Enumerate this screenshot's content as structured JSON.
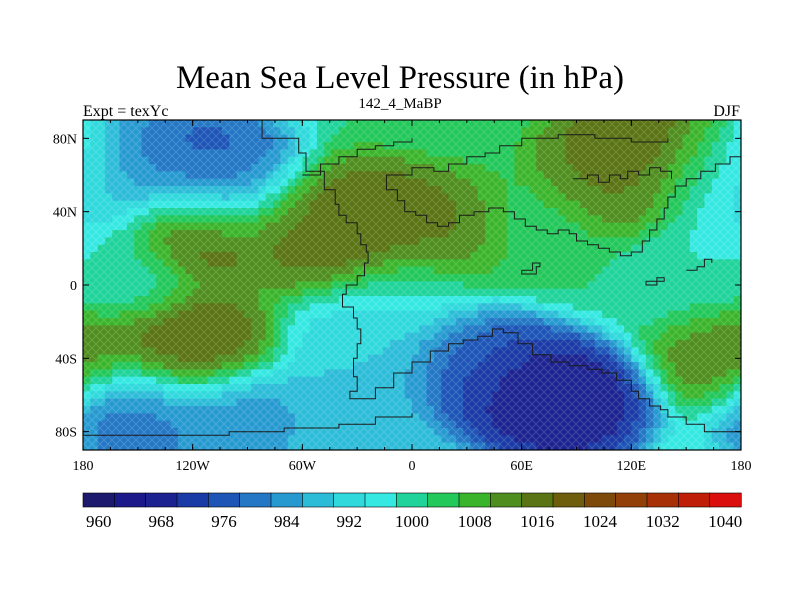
{
  "header": {
    "title": "Mean Sea Level Pressure (in hPa)",
    "subtitle": "142_4_MaBP",
    "left_label": "Expt = texYc",
    "right_label": "DJF"
  },
  "map": {
    "projection": "cylindrical-equidistant",
    "lon_range": [
      -180,
      180
    ],
    "lat_range": [
      -90,
      90
    ],
    "x_ticks": [
      {
        "lon": -180,
        "label": "180"
      },
      {
        "lon": -120,
        "label": "120W"
      },
      {
        "lon": -60,
        "label": "60W"
      },
      {
        "lon": 0,
        "label": "0"
      },
      {
        "lon": 60,
        "label": "60E"
      },
      {
        "lon": 120,
        "label": "120E"
      },
      {
        "lon": 180,
        "label": "180"
      }
    ],
    "y_ticks": [
      {
        "lat": 80,
        "label": "80N"
      },
      {
        "lat": 40,
        "label": "40N"
      },
      {
        "lat": 0,
        "label": "0"
      },
      {
        "lat": -40,
        "label": "40S"
      },
      {
        "lat": -80,
        "label": "80S"
      }
    ],
    "field_centers": [
      {
        "lon": -120,
        "lat": 65,
        "value": 975
      },
      {
        "lon": -100,
        "lat": 58,
        "value": 980
      },
      {
        "lon": -120,
        "lat": 33,
        "value": 1022
      },
      {
        "lon": -60,
        "lat": 35,
        "value": 1018
      },
      {
        "lon": -25,
        "lat": 30,
        "value": 1022
      },
      {
        "lon": 15,
        "lat": 25,
        "value": 1018
      },
      {
        "lon": 125,
        "lat": 72,
        "value": 1022
      },
      {
        "lon": 110,
        "lat": 55,
        "value": 1016
      },
      {
        "lon": 160,
        "lat": 60,
        "value": 1008
      },
      {
        "lon": 175,
        "lat": 52,
        "value": 990
      },
      {
        "lon": -150,
        "lat": 62,
        "value": 985
      },
      {
        "lon": -125,
        "lat": -35,
        "value": 1022
      },
      {
        "lon": -20,
        "lat": -35,
        "value": 992
      },
      {
        "lon": 55,
        "lat": -55,
        "value": 968
      },
      {
        "lon": 85,
        "lat": -65,
        "value": 966
      },
      {
        "lon": 30,
        "lat": -40,
        "value": 978
      },
      {
        "lon": -30,
        "lat": -75,
        "value": 988
      },
      {
        "lon": -150,
        "lat": -70,
        "value": 980
      },
      {
        "lon": -100,
        "lat": -75,
        "value": 984
      },
      {
        "lon": 175,
        "lat": -35,
        "value": 1016
      },
      {
        "lon": 70,
        "lat": 25,
        "value": 1005
      },
      {
        "lon": 0,
        "lat": -5,
        "value": 998
      },
      {
        "lon": 150,
        "lat": 5,
        "value": 1000
      },
      {
        "lon": -160,
        "lat": 5,
        "value": 1000
      }
    ],
    "base_value": 1004
  },
  "colorbar": {
    "levels": [
      960,
      964,
      968,
      972,
      976,
      980,
      984,
      988,
      992,
      996,
      1000,
      1004,
      1008,
      1012,
      1016,
      1020,
      1024,
      1028,
      1032,
      1036,
      1040
    ],
    "colors": [
      "#1d1a6e",
      "#1c1a8a",
      "#1c2390",
      "#1a3aa6",
      "#1d55b7",
      "#2377c5",
      "#269ad0",
      "#2cbcd8",
      "#2fd9dc",
      "#35e8e2",
      "#1fd39a",
      "#22c85a",
      "#3ab52b",
      "#4f8e1e",
      "#5a7414",
      "#6d5d0d",
      "#7e4a0a",
      "#924008",
      "#a83006",
      "#c01d08",
      "#db0e0e"
    ],
    "labels": [
      "960",
      "968",
      "976",
      "984",
      "992",
      "1000",
      "1008",
      "1016",
      "1024",
      "1032",
      "1040"
    ]
  }
}
